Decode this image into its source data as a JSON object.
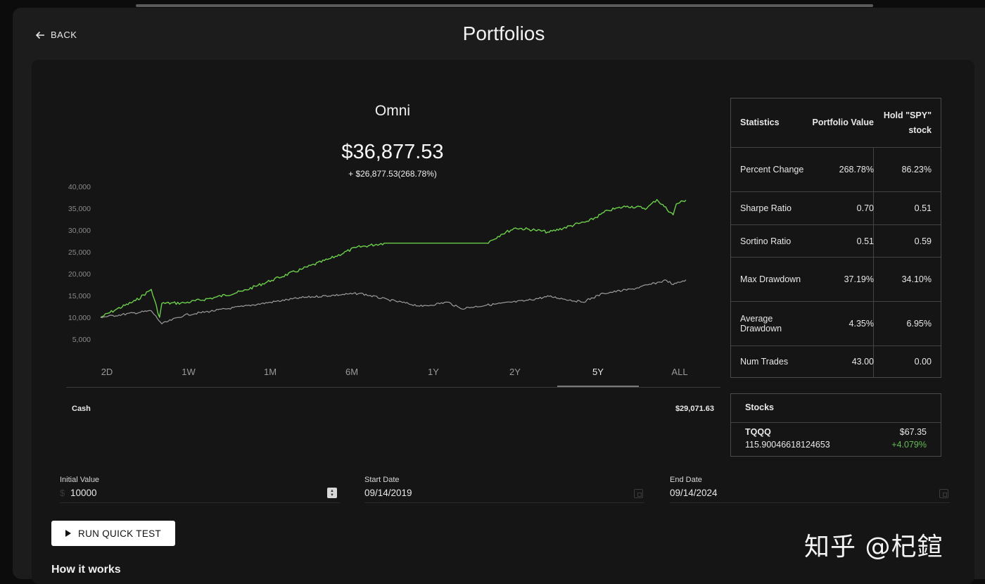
{
  "header": {
    "back_label": "BACK",
    "title": "Portfolios"
  },
  "portfolio": {
    "name": "Omni",
    "value": "$36,877.53",
    "change": "+ $26,877.53(268.78%)"
  },
  "colors": {
    "portfolio_line": "#6ccf4a",
    "benchmark_line": "#9c9c9c",
    "positive": "#66bb55"
  },
  "chart_data": {
    "type": "line",
    "yticks": [
      "40,000",
      "35,000",
      "30,000",
      "25,000",
      "20,000",
      "15,000",
      "10,000",
      "5,000"
    ],
    "ylim": [
      0,
      40000
    ],
    "xlim": [
      "09/14/2019",
      "09/14/2024"
    ],
    "grid": false,
    "series": [
      {
        "x": [
          "09/14/2019",
          "11/01/2019",
          "01/01/2020",
          "02/19/2020",
          "03/16/2020",
          "03/23/2020",
          "06/01/2020",
          "09/01/2020",
          "12/01/2020",
          "03/01/2021",
          "06/01/2021",
          "09/01/2021",
          "11/19/2021",
          "02/15/2022",
          "09/15/2022",
          "01/01/2023",
          "02/15/2023",
          "04/01/2023",
          "06/01/2023",
          "07/15/2023",
          "10/15/2023",
          "11/15/2023",
          "01/15/2024",
          "03/15/2024",
          "05/15/2024",
          "06/15/2024",
          "08/05/2024",
          "08/15/2024",
          "09/14/2024"
        ],
        "values": [
          10000,
          11800,
          13800,
          16400,
          10000,
          13200,
          13300,
          14500,
          16000,
          18500,
          21000,
          23500,
          26000,
          27000,
          27000,
          27000,
          29000,
          30500,
          30000,
          29500,
          31500,
          32000,
          34500,
          35500,
          35000,
          37000,
          33500,
          36000,
          36878
        ]
      },
      {
        "x": [
          "09/14/2019",
          "02/19/2020",
          "03/23/2020",
          "06/01/2020",
          "12/01/2020",
          "06/01/2021",
          "12/01/2021",
          "03/01/2022",
          "06/15/2022",
          "09/01/2022",
          "10/12/2022",
          "01/01/2023",
          "05/01/2023",
          "07/15/2023",
          "10/27/2023",
          "01/01/2024",
          "04/01/2024",
          "07/15/2024",
          "08/05/2024",
          "09/14/2024"
        ],
        "values": [
          10000,
          11500,
          8500,
          10500,
          12500,
          14500,
          15500,
          14000,
          12500,
          13500,
          12000,
          12800,
          13800,
          14800,
          13500,
          15500,
          16500,
          18500,
          17500,
          18600
        ]
      }
    ]
  },
  "ranges": [
    "2D",
    "1W",
    "1M",
    "6M",
    "1Y",
    "2Y",
    "5Y",
    "ALL"
  ],
  "active_range": "5Y",
  "cash": {
    "label": "Cash",
    "value": "$29,071.63"
  },
  "statistics": {
    "header": [
      "Statistics",
      "Portfolio Value",
      "Hold \"SPY\" stock"
    ],
    "rows": [
      [
        "Percent Change",
        "268.78%",
        "86.23%"
      ],
      [
        "Sharpe Ratio",
        "0.70",
        "0.51"
      ],
      [
        "Sortino Ratio",
        "0.51",
        "0.59"
      ],
      [
        "Max Drawdown",
        "37.19%",
        "34.10%"
      ],
      [
        "Average Drawdown",
        "4.35%",
        "6.95%"
      ],
      [
        "Num Trades",
        "43.00",
        "0.00"
      ]
    ]
  },
  "stocks": {
    "title": "Stocks",
    "items": [
      {
        "symbol": "TQQQ",
        "shares": "115.90046618124653",
        "price": "$67.35",
        "change": "+4.079%"
      }
    ]
  },
  "inputs": {
    "initial_value": {
      "label": "Initial Value",
      "value": "10000",
      "prefix": "$"
    },
    "start_date": {
      "label": "Start Date",
      "value": "09/14/2019"
    },
    "end_date": {
      "label": "End Date",
      "value": "09/14/2024"
    }
  },
  "actions": {
    "run_label": "RUN QUICK TEST",
    "how_it_works": "How it works"
  },
  "watermark": "知乎 @杞鍹"
}
